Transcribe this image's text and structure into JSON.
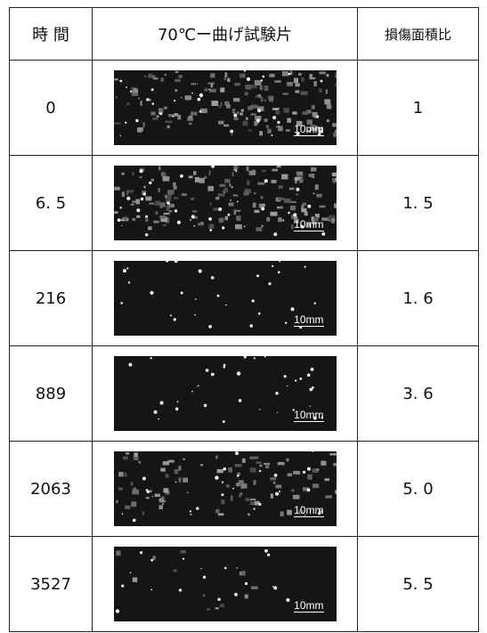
{
  "table": {
    "header": [
      "時 間",
      "70℃ー曲げ試験片",
      "損傷面積比"
    ],
    "rows": [
      {
        "time": "0",
        "scale": "10mm",
        "ratio": "1"
      },
      {
        "time": "6. 5",
        "scale": "10mm",
        "ratio": "1. 5"
      },
      {
        "time": "216",
        "scale": "10mm",
        "ratio": "1. 6"
      },
      {
        "time": "889",
        "scale": "10mm",
        "ratio": "3. 6"
      },
      {
        "time": "2063",
        "scale": "10mm",
        "ratio": "5. 0"
      },
      {
        "time": "3527",
        "scale": "10mm",
        "ratio": "5. 5"
      }
    ]
  }
}
